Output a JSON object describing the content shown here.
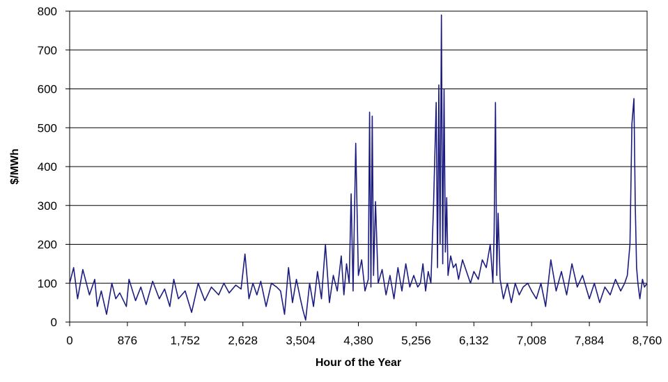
{
  "chart_data": {
    "type": "line",
    "title": "",
    "xlabel": "Hour of the Year",
    "ylabel": "$/MWh",
    "xlim": [
      0,
      8760
    ],
    "ylim": [
      0,
      800
    ],
    "x_ticks": [
      0,
      876,
      1752,
      2628,
      3504,
      4380,
      5256,
      6132,
      7008,
      7884,
      8760
    ],
    "x_tick_labels": [
      "0",
      "876",
      "1,752",
      "2,628",
      "3,504",
      "4,380",
      "5,256",
      "6,132",
      "7,008",
      "7,884",
      "8,760"
    ],
    "y_ticks": [
      0,
      100,
      200,
      300,
      400,
      500,
      600,
      700,
      800
    ],
    "y_tick_labels": [
      "0",
      "100",
      "200",
      "300",
      "400",
      "500",
      "600",
      "700",
      "800"
    ],
    "grid": "horizontal",
    "legend": "none",
    "series": [
      {
        "color": "#1c1c80",
        "x": [
          0,
          60,
          120,
          200,
          300,
          380,
          420,
          480,
          560,
          640,
          700,
          760,
          860,
          900,
          1000,
          1080,
          1160,
          1260,
          1360,
          1440,
          1520,
          1580,
          1650,
          1752,
          1850,
          1950,
          2050,
          2150,
          2260,
          2340,
          2420,
          2520,
          2600,
          2660,
          2720,
          2780,
          2840,
          2900,
          2980,
          3060,
          3140,
          3200,
          3260,
          3320,
          3380,
          3440,
          3500,
          3540,
          3580,
          3640,
          3700,
          3760,
          3820,
          3880,
          3940,
          4000,
          4060,
          4120,
          4160,
          4200,
          4240,
          4270,
          4300,
          4340,
          4380,
          4430,
          4480,
          4530,
          4550,
          4570,
          4590,
          4610,
          4640,
          4680,
          4740,
          4800,
          4860,
          4920,
          4980,
          5040,
          5100,
          5160,
          5220,
          5280,
          5320,
          5360,
          5400,
          5440,
          5480,
          5520,
          5560,
          5580,
          5600,
          5620,
          5640,
          5660,
          5680,
          5700,
          5720,
          5740,
          5780,
          5820,
          5860,
          5900,
          5960,
          6020,
          6080,
          6132,
          6200,
          6260,
          6320,
          6380,
          6420,
          6440,
          6460,
          6480,
          6500,
          6530,
          6580,
          6640,
          6700,
          6760,
          6820,
          6880,
          6950,
          7008,
          7080,
          7150,
          7220,
          7300,
          7380,
          7460,
          7540,
          7620,
          7700,
          7780,
          7884,
          7960,
          8040,
          8120,
          8200,
          8280,
          8360,
          8420,
          8460,
          8500,
          8530,
          8560,
          8580,
          8600,
          8620,
          8650,
          8690,
          8720,
          8760
        ],
        "y": [
          100,
          140,
          60,
          135,
          70,
          110,
          40,
          80,
          20,
          100,
          60,
          75,
          40,
          110,
          55,
          90,
          45,
          105,
          60,
          85,
          40,
          110,
          60,
          80,
          25,
          100,
          55,
          90,
          70,
          100,
          75,
          95,
          85,
          175,
          60,
          100,
          70,
          105,
          40,
          100,
          90,
          80,
          20,
          140,
          50,
          110,
          60,
          30,
          5,
          100,
          40,
          130,
          60,
          200,
          50,
          120,
          80,
          170,
          70,
          150,
          100,
          330,
          80,
          460,
          120,
          160,
          80,
          110,
          540,
          90,
          530,
          120,
          310,
          100,
          135,
          70,
          120,
          60,
          140,
          80,
          150,
          90,
          120,
          90,
          100,
          150,
          80,
          130,
          100,
          300,
          565,
          140,
          610,
          200,
          790,
          150,
          600,
          180,
          320,
          120,
          170,
          140,
          150,
          110,
          160,
          130,
          100,
          130,
          110,
          160,
          140,
          200,
          100,
          230,
          565,
          120,
          280,
          110,
          60,
          100,
          50,
          100,
          70,
          90,
          100,
          80,
          60,
          100,
          40,
          160,
          80,
          130,
          70,
          150,
          90,
          120,
          60,
          100,
          50,
          90,
          70,
          110,
          80,
          100,
          120,
          200,
          510,
          575,
          300,
          140,
          100,
          60,
          110,
          90,
          100
        ]
      }
    ]
  }
}
